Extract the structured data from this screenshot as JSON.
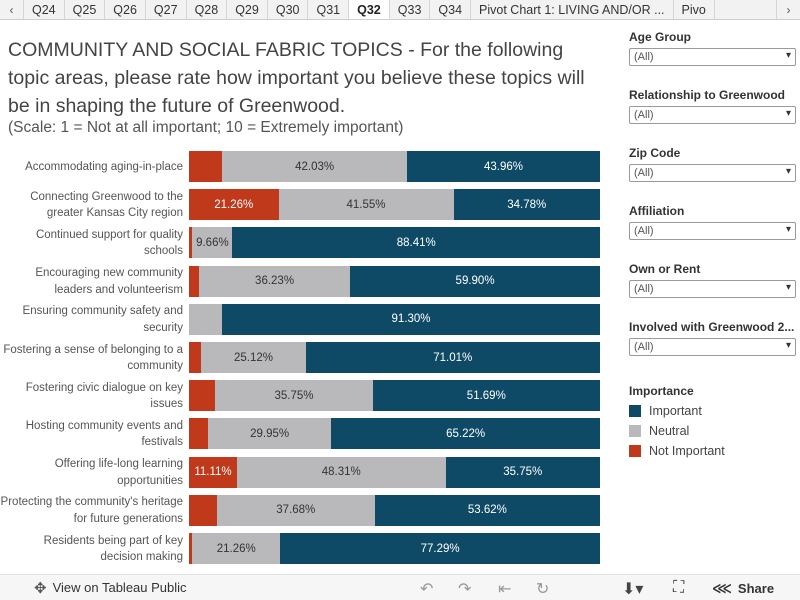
{
  "tabs": [
    "Q24",
    "Q25",
    "Q26",
    "Q27",
    "Q28",
    "Q29",
    "Q30",
    "Q31",
    "Q32",
    "Q33",
    "Q34",
    "Pivot Chart 1: LIVING AND/OR ...",
    "Pivo"
  ],
  "active_tab": "Q32",
  "title": "COMMUNITY AND SOCIAL FABRIC TOPICS - For the following topic areas, please rate how important you believe these topics will be in shaping the future of Greenwood.",
  "subtitle": "(Scale: 1 = Not at all important; 10 = Extremely important)",
  "filters": [
    {
      "label": "Age Group",
      "value": "(All)"
    },
    {
      "label": "Relationship to Greenwood",
      "value": "(All)"
    },
    {
      "label": "Zip Code",
      "value": "(All)"
    },
    {
      "label": "Affiliation",
      "value": "(All)"
    },
    {
      "label": "Own or Rent",
      "value": "(All)"
    },
    {
      "label": "Involved with Greenwood 2...",
      "value": "(All)"
    }
  ],
  "legend": {
    "title": "Importance",
    "items": [
      {
        "label": "Important",
        "color": "#0e4a66"
      },
      {
        "label": "Neutral",
        "color": "#b9b9bc"
      },
      {
        "label": "Not Important",
        "color": "#c0391b"
      }
    ]
  },
  "chart_data": {
    "type": "bar",
    "stacked": true,
    "orientation": "horizontal",
    "categories": [
      "Accommodating aging-in-place",
      "Connecting Greenwood to the greater Kansas City region",
      "Continued support for quality schools",
      "Encouraging new community leaders and volunteerism",
      "Ensuring community safety and security",
      "Fostering a sense of belonging to a community",
      "Fostering civic dialogue on key issues",
      "Hosting community events and festivals",
      "Offering life-long learning opportunities",
      "Protecting the community's heritage for future generations",
      "Residents being part of key decision making"
    ],
    "series": [
      {
        "name": "Not Important",
        "color": "#c0391b",
        "values": [
          7.6,
          21.26,
          0.8,
          2.4,
          0,
          3.0,
          6.0,
          4.6,
          11.11,
          6.6,
          0.8
        ],
        "labels": [
          "",
          "21.26%",
          "",
          "",
          "",
          "",
          "",
          "",
          "11.11%",
          "",
          ""
        ]
      },
      {
        "name": "Neutral",
        "color": "#b9b9bc",
        "values": [
          42.03,
          41.55,
          9.66,
          36.23,
          8.0,
          25.12,
          35.75,
          29.95,
          48.31,
          37.68,
          21.26
        ],
        "labels": [
          "42.03%",
          "41.55%",
          "9.66%",
          "36.23%",
          "",
          "25.12%",
          "35.75%",
          "29.95%",
          "48.31%",
          "37.68%",
          "21.26%"
        ]
      },
      {
        "name": "Important",
        "color": "#0e4a66",
        "values": [
          43.96,
          34.78,
          88.41,
          59.9,
          91.3,
          71.01,
          51.69,
          65.22,
          35.75,
          53.62,
          77.29
        ],
        "labels": [
          "43.96%",
          "34.78%",
          "88.41%",
          "59.90%",
          "91.30%",
          "71.01%",
          "51.69%",
          "65.22%",
          "35.75%",
          "53.62%",
          "77.29%"
        ]
      }
    ],
    "xlim": [
      0,
      100
    ]
  },
  "footer": {
    "view_label": "View on Tableau Public",
    "share_label": "Share"
  }
}
